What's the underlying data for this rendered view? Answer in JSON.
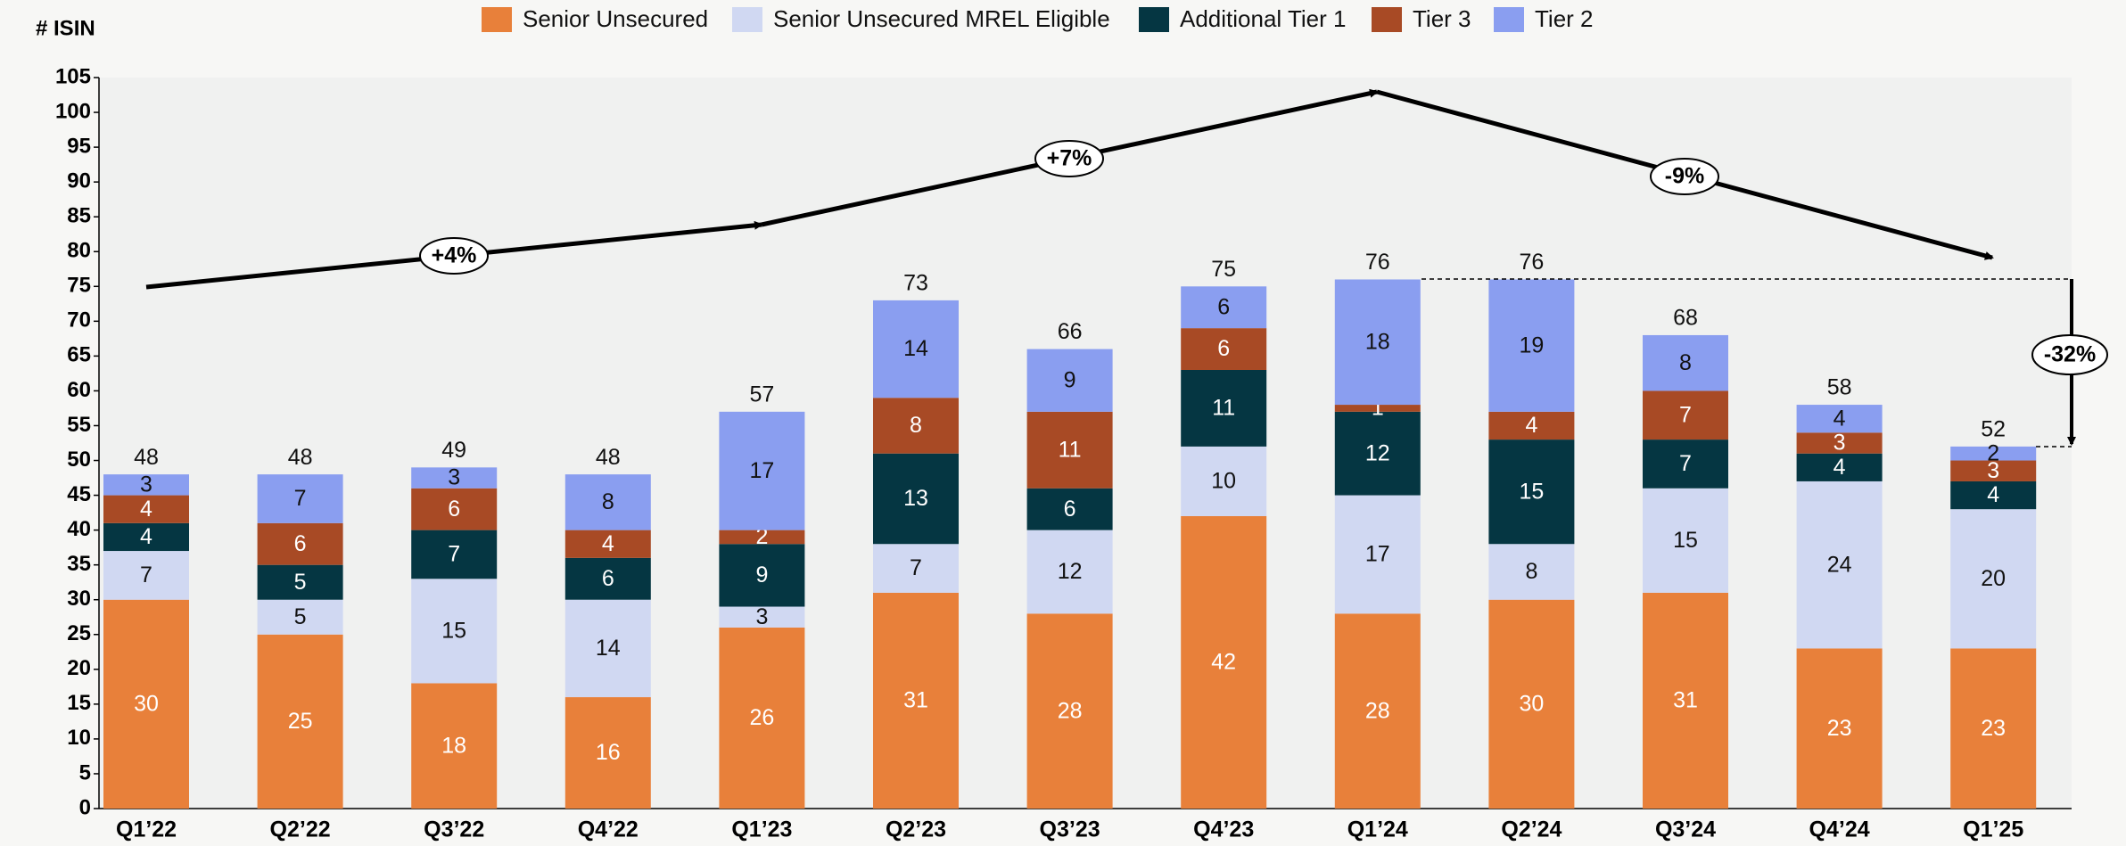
{
  "chart_data": {
    "type": "stacked-bar",
    "ylabel": "# ISIN",
    "categories": [
      "Q1’22",
      "Q2’22",
      "Q3’22",
      "Q4’22",
      "Q1’23",
      "Q2’23",
      "Q3’23",
      "Q4’23",
      "Q1’24",
      "Q2’24",
      "Q3’24",
      "Q4’24",
      "Q1’25"
    ],
    "series": [
      {
        "name": "Senior Unsecured",
        "color": "#e8803a",
        "values": [
          30,
          25,
          18,
          16,
          26,
          31,
          28,
          42,
          28,
          30,
          31,
          23,
          23
        ]
      },
      {
        "name": "Senior Unsecured MREL Eligible",
        "color": "#d0d8f2",
        "values": [
          7,
          5,
          15,
          14,
          3,
          7,
          12,
          10,
          17,
          8,
          15,
          24,
          20
        ]
      },
      {
        "name": "Additional Tier 1",
        "color": "#053642",
        "values": [
          4,
          5,
          7,
          6,
          9,
          13,
          6,
          11,
          12,
          15,
          7,
          4,
          4
        ]
      },
      {
        "name": "Tier 3",
        "color": "#a84a25",
        "values": [
          4,
          6,
          6,
          4,
          2,
          8,
          11,
          6,
          1,
          4,
          7,
          3,
          3
        ]
      },
      {
        "name": "Tier 2",
        "color": "#8a9ef0",
        "values": [
          3,
          7,
          3,
          8,
          17,
          14,
          9,
          6,
          18,
          19,
          8,
          4,
          2
        ]
      }
    ],
    "totals": [
      48,
      48,
      49,
      48,
      57,
      73,
      66,
      75,
      76,
      76,
      68,
      58,
      52
    ],
    "annotations": [
      "+4%",
      "+7%",
      "-9%",
      "-32%"
    ],
    "ylim": [
      0,
      105
    ],
    "yticks": [
      0,
      5,
      10,
      15,
      20,
      25,
      30,
      35,
      40,
      45,
      50,
      55,
      60,
      65,
      70,
      75,
      80,
      85,
      90,
      95,
      100,
      105
    ],
    "legend": "top"
  }
}
